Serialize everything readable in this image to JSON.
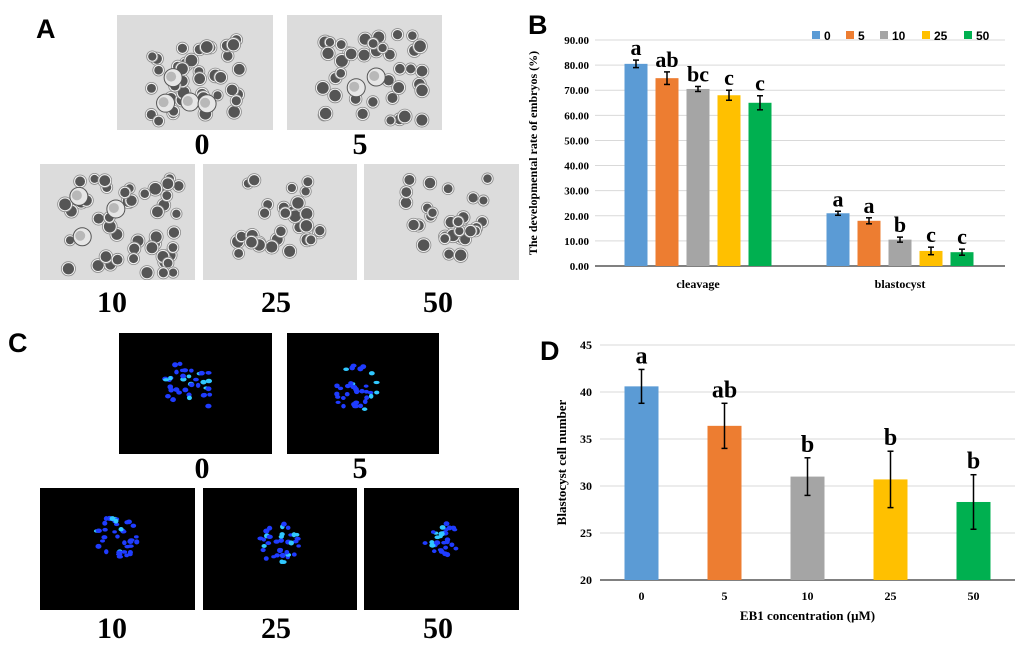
{
  "panels": {
    "A": {
      "label": "A",
      "images": [
        {
          "caption": "0"
        },
        {
          "caption": "5"
        },
        {
          "caption": "10"
        },
        {
          "caption": "25"
        },
        {
          "caption": "50"
        }
      ]
    },
    "C": {
      "label": "C",
      "images": [
        {
          "caption": "0"
        },
        {
          "caption": "5"
        },
        {
          "caption": "10"
        },
        {
          "caption": "25"
        },
        {
          "caption": "50"
        }
      ]
    },
    "B": {
      "label": "B"
    },
    "D": {
      "label": "D"
    }
  },
  "chart_data": [
    {
      "id": "B",
      "type": "bar",
      "ylabel": "The developmental rate of embryos (%)",
      "xlabel": "",
      "ylim": [
        0,
        90
      ],
      "yticks": [
        "0.00",
        "10.00",
        "20.00",
        "30.00",
        "40.00",
        "50.00",
        "60.00",
        "70.00",
        "80.00",
        "90.00"
      ],
      "grid": true,
      "legend": "top-right",
      "categories": [
        "cleavage",
        "blastocyst"
      ],
      "colors": [
        "#5b9bd5",
        "#ed7d31",
        "#a5a5a5",
        "#ffc000",
        "#00b050"
      ],
      "series": [
        {
          "name": "0",
          "values": [
            80.5,
            21.0
          ],
          "errors": [
            1.5,
            0.8
          ],
          "letters": [
            "a",
            "a"
          ]
        },
        {
          "name": "5",
          "values": [
            74.8,
            18.0
          ],
          "errors": [
            2.5,
            1.2
          ],
          "letters": [
            "ab",
            "a"
          ]
        },
        {
          "name": "10",
          "values": [
            70.5,
            10.5
          ],
          "errors": [
            1.0,
            1.0
          ],
          "letters": [
            "bc",
            "b"
          ]
        },
        {
          "name": "25",
          "values": [
            68.0,
            6.0
          ],
          "errors": [
            2.0,
            1.5
          ],
          "letters": [
            "c",
            "c"
          ]
        },
        {
          "name": "50",
          "values": [
            65.0,
            5.5
          ],
          "errors": [
            2.8,
            1.2
          ],
          "letters": [
            "c",
            "c"
          ]
        }
      ]
    },
    {
      "id": "D",
      "type": "bar",
      "ylabel": "Blastocyst cell number",
      "xlabel": "EB1 concentration (μM)",
      "ylim": [
        20,
        45
      ],
      "yticks": [
        "20",
        "25",
        "30",
        "35",
        "40",
        "45"
      ],
      "grid": true,
      "categories": [
        "0",
        "5",
        "10",
        "25",
        "50"
      ],
      "colors": [
        "#5b9bd5",
        "#ed7d31",
        "#a5a5a5",
        "#ffc000",
        "#00b050"
      ],
      "values": [
        40.6,
        36.4,
        31.0,
        30.7,
        28.3
      ],
      "errors": [
        1.8,
        2.4,
        2.0,
        3.0,
        2.9
      ],
      "letters": [
        "a",
        "ab",
        "b",
        "b",
        "b"
      ]
    }
  ]
}
